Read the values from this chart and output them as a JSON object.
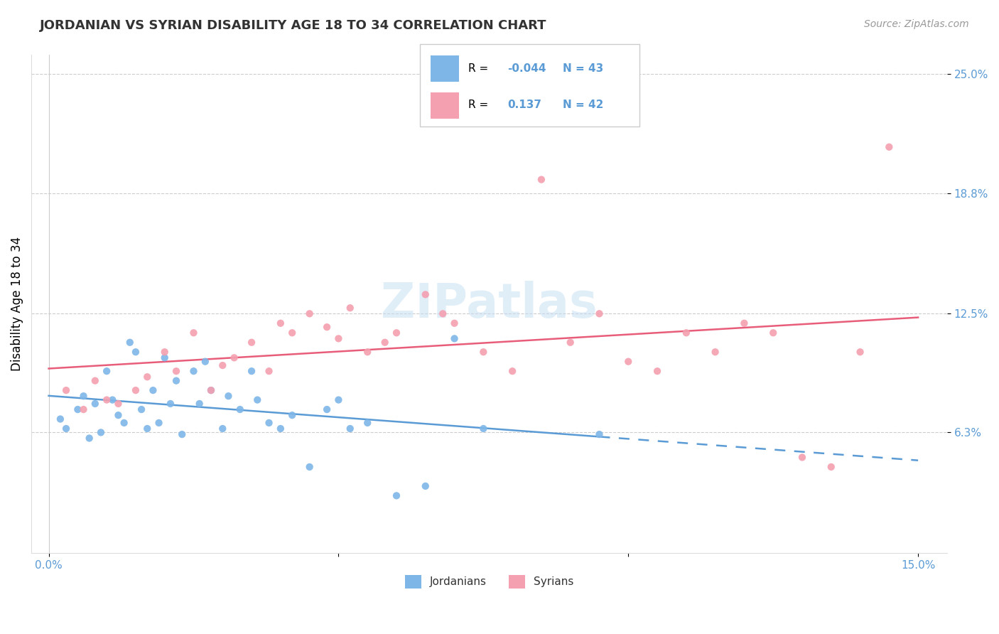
{
  "title": "JORDANIAN VS SYRIAN DISABILITY AGE 18 TO 34 CORRELATION CHART",
  "source": "Source: ZipAtlas.com",
  "ylabel_label": "Disability Age 18 to 34",
  "xlim": [
    -0.3,
    15.5
  ],
  "ylim": [
    0.0,
    26.0
  ],
  "xticks": [
    0.0,
    5.0,
    10.0,
    15.0
  ],
  "xticklabels": [
    "0.0%",
    "",
    "",
    "15.0%"
  ],
  "yticks": [
    6.3,
    12.5,
    18.8,
    25.0
  ],
  "yticklabels": [
    "6.3%",
    "12.5%",
    "18.8%",
    "25.0%"
  ],
  "legend_R1": "-0.044",
  "legend_N1": "43",
  "legend_R2": "0.137",
  "legend_N2": "42",
  "watermark": "ZIPatlas",
  "blue_color": "#7EB6E8",
  "pink_color": "#F4A0B0",
  "blue_line_color": "#5B9BD5",
  "pink_line_color": "#E85D7A",
  "axis_color": "#5B9BD5",
  "grid_color": "#CCCCCC",
  "jordanians_x": [
    0.2,
    0.3,
    0.5,
    0.6,
    0.7,
    0.8,
    0.9,
    1.0,
    1.1,
    1.2,
    1.3,
    1.4,
    1.5,
    1.6,
    1.7,
    1.8,
    1.9,
    2.0,
    2.1,
    2.2,
    2.3,
    2.5,
    2.6,
    2.7,
    2.8,
    3.0,
    3.1,
    3.3,
    3.5,
    3.6,
    3.8,
    4.0,
    4.2,
    4.5,
    4.8,
    5.0,
    5.2,
    5.5,
    6.0,
    6.5,
    7.0,
    7.5,
    9.5
  ],
  "jordanians_y": [
    7.0,
    6.5,
    7.5,
    8.2,
    6.0,
    7.8,
    6.3,
    9.5,
    8.0,
    7.2,
    6.8,
    11.0,
    10.5,
    7.5,
    6.5,
    8.5,
    6.8,
    10.2,
    7.8,
    9.0,
    6.2,
    9.5,
    7.8,
    10.0,
    8.5,
    6.5,
    8.2,
    7.5,
    9.5,
    8.0,
    6.8,
    6.5,
    7.2,
    4.5,
    7.5,
    8.0,
    6.5,
    6.8,
    3.0,
    3.5,
    11.2,
    6.5,
    6.2
  ],
  "syrians_x": [
    0.3,
    0.6,
    0.8,
    1.0,
    1.2,
    1.5,
    1.7,
    2.0,
    2.2,
    2.5,
    2.8,
    3.0,
    3.2,
    3.5,
    3.8,
    4.0,
    4.2,
    4.5,
    4.8,
    5.0,
    5.2,
    5.5,
    6.0,
    6.5,
    7.0,
    7.5,
    8.0,
    8.5,
    9.0,
    9.5,
    10.0,
    10.5,
    11.0,
    11.5,
    12.0,
    12.5,
    13.0,
    13.5,
    14.0,
    14.5,
    5.8,
    6.8
  ],
  "syrians_y": [
    8.5,
    7.5,
    9.0,
    8.0,
    7.8,
    8.5,
    9.2,
    10.5,
    9.5,
    11.5,
    8.5,
    9.8,
    10.2,
    11.0,
    9.5,
    12.0,
    11.5,
    12.5,
    11.8,
    11.2,
    12.8,
    10.5,
    11.5,
    13.5,
    12.0,
    10.5,
    9.5,
    19.5,
    11.0,
    12.5,
    10.0,
    9.5,
    11.5,
    10.5,
    12.0,
    11.5,
    5.0,
    4.5,
    10.5,
    21.2,
    11.0,
    12.5
  ],
  "j_trend_start": 8.5,
  "j_trend_end": 7.2,
  "s_trend_start": 8.0,
  "s_trend_end": 10.5
}
